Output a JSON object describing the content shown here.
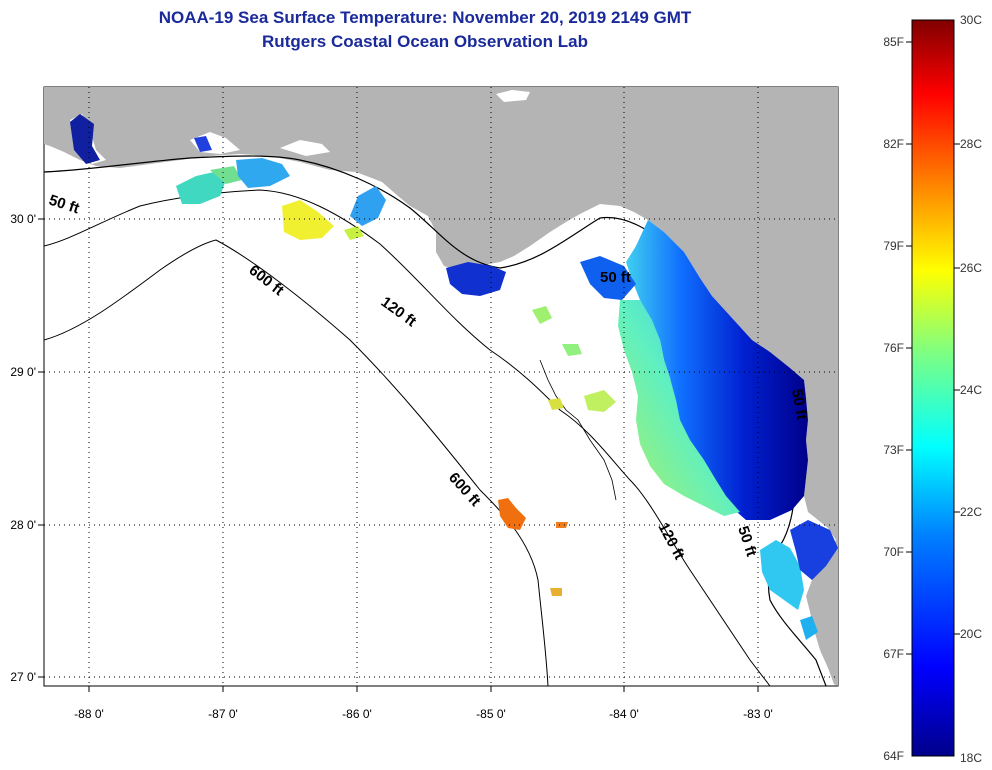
{
  "title_line1": "NOAA-19 Sea Surface Temperature:  November 20, 2019 2149 GMT",
  "title_line2": "Rutgers Coastal Ocean Observation Lab",
  "axes": {
    "lon_labels": [
      "-88 0'",
      "-87 0'",
      "-86 0'",
      "-85 0'",
      "-84 0'",
      "-83 0'"
    ],
    "lat_labels": [
      "30 0'",
      "29 0'",
      "28 0'",
      "27 0'"
    ]
  },
  "contours": {
    "c50_west": "50 ft",
    "c600_a": "600 ft",
    "c120_a": "120 ft",
    "c50_bigbend": "50 ft",
    "c600_b": "600 ft",
    "c120_b": "120 ft",
    "c50_south": "50 ft",
    "c50_east": "50 ft"
  },
  "colorbar": {
    "fahrenheit": [
      "85F",
      "82F",
      "79F",
      "76F",
      "73F",
      "70F",
      "67F",
      "64F"
    ],
    "celsius": [
      "30C",
      "28C",
      "26C",
      "24C",
      "22C",
      "20C",
      "18C"
    ],
    "colors": [
      "#00008b",
      "#0000ff",
      "#0080ff",
      "#00ffff",
      "#80ff80",
      "#ffff00",
      "#ff8000",
      "#ff0000",
      "#800000"
    ]
  }
}
